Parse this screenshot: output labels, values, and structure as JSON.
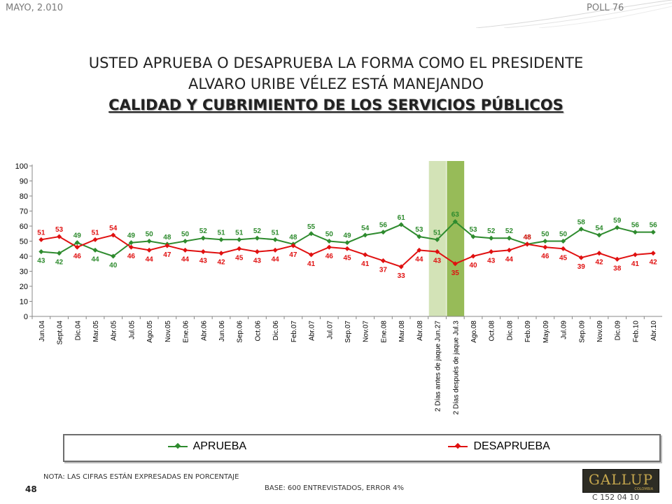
{
  "header": {
    "date": "MAYO, 2.010",
    "poll": "POLL 76"
  },
  "title": {
    "line1": "USTED APRUEBA O DESAPRUEBA LA FORMA COMO EL PRESIDENTE",
    "line2": "ALVARO URIBE VÉLEZ ESTÁ MANEJANDO",
    "line3": "CALIDAD Y CUBRIMIENTO DE LOS SERVICIOS PÚBLICOS"
  },
  "chart_data": {
    "type": "line",
    "categories": [
      "Jun.04",
      "Sept.04",
      "Dic.04",
      "Mar.05",
      "Abr.05",
      "Jul.05",
      "Ago.05",
      "Nov.05",
      "Ene.06",
      "Abr.06",
      "Jun.06",
      "Sep.06",
      "Oct.06",
      "Dic.06",
      "Feb.07",
      "Abr.07",
      "Jul.07",
      "Sep.07",
      "Nov.07",
      "Ene.08",
      "Mar.08",
      "Abr.08",
      "2 Días antes de jaque Jun.27",
      "2 Días después de jaque Jul.3",
      "Ago.08",
      "Oct.08",
      "Dic.08",
      "Feb.09",
      "May.09",
      "Jul.09",
      "Sep.09",
      "Nov.09",
      "Dic.09",
      "Feb.10",
      "Abr.10"
    ],
    "series": [
      {
        "name": "APRUEBA",
        "color": "#2e8b2e",
        "values": [
          43,
          42,
          49,
          44,
          40,
          49,
          50,
          48,
          50,
          52,
          51,
          51,
          52,
          51,
          48,
          55,
          50,
          49,
          54,
          56,
          61,
          53,
          51,
          63,
          53,
          52,
          52,
          48,
          50,
          50,
          58,
          54,
          59,
          56,
          56
        ]
      },
      {
        "name": "DESAPRUEBA",
        "color": "#e01010",
        "values": [
          51,
          53,
          46,
          51,
          54,
          46,
          44,
          47,
          44,
          43,
          42,
          45,
          43,
          44,
          47,
          41,
          46,
          45,
          41,
          37,
          33,
          44,
          43,
          35,
          40,
          43,
          44,
          48,
          46,
          45,
          39,
          42,
          38,
          41,
          42
        ]
      }
    ],
    "ylim": [
      0,
      100
    ],
    "yticks": [
      0,
      10,
      20,
      30,
      40,
      50,
      60,
      70,
      80,
      90,
      100
    ],
    "highlight_categories": [
      "2 Días antes de jaque Jun.27",
      "2 Días después de jaque Jul.3"
    ],
    "highlight_colors": [
      "#d3e3b7",
      "#97bb58"
    ],
    "grid": false,
    "legend": "bottom"
  },
  "legend": {
    "aprueba": "APRUEBA",
    "desaprueba": "DESAPRUEBA"
  },
  "footer": {
    "note": "NOTA: LAS CIFRAS ESTÁN EXPRESADAS EN PORCENTAJE",
    "base": "BASE: 600 ENTREVISTADOS, ERROR 4%",
    "page": "48",
    "code": "C 152 04 10",
    "logo_word": "GALLUP",
    "logo_sub": "COLOMBIA"
  }
}
